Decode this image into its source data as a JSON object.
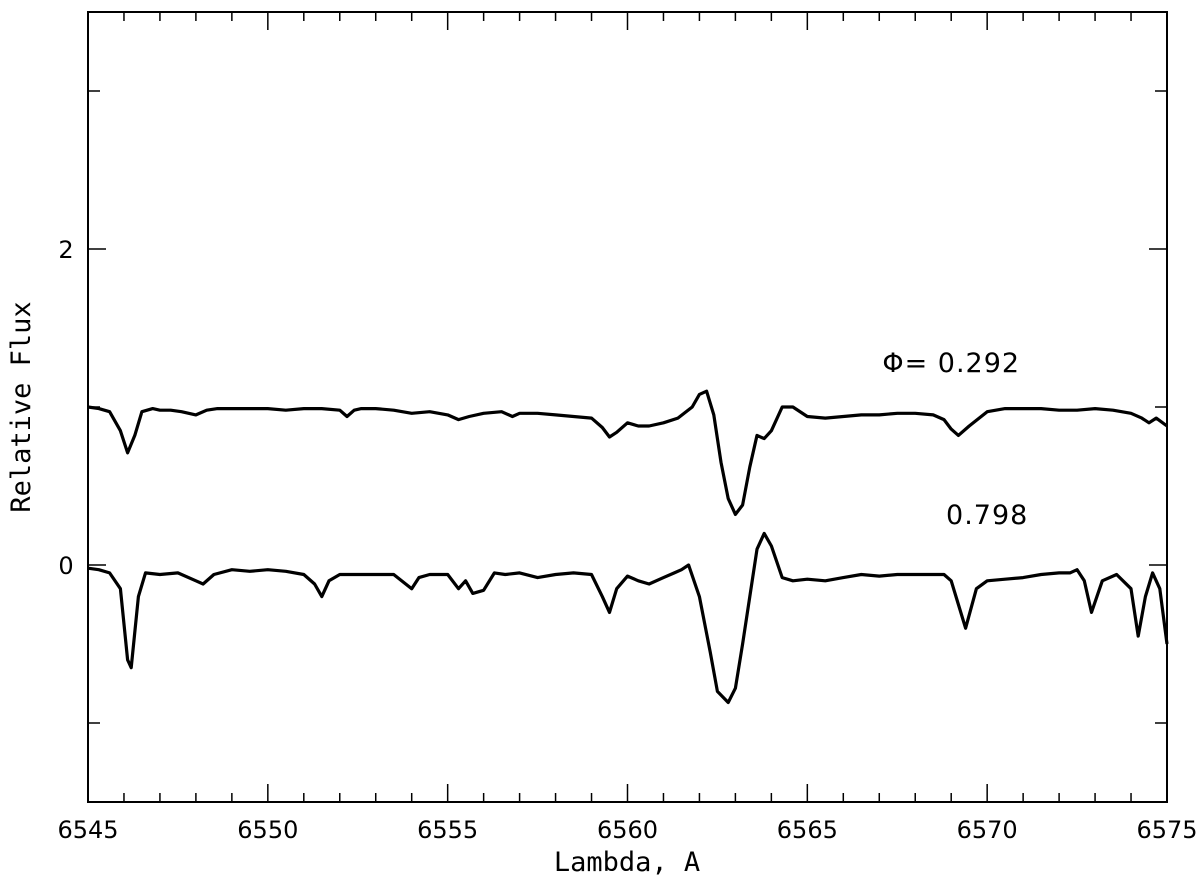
{
  "chart_data": {
    "type": "line",
    "title": "",
    "xlabel": "Lambda, A",
    "ylabel": "Relative Flux",
    "xlim": [
      6545,
      6575
    ],
    "ylim": [
      -1.5,
      3.5
    ],
    "xticks_major": [
      6545,
      6550,
      6555,
      6560,
      6565,
      6570,
      6575
    ],
    "xticks_minor_step": 1,
    "yticks_major": [
      0,
      2
    ],
    "yticks_minor": [
      -1,
      1,
      3
    ],
    "grid": false,
    "annotations": [
      {
        "text": "Φ= 0.292",
        "x": 6569.0,
        "y": 1.22
      },
      {
        "text": "0.798",
        "x": 6570.0,
        "y": 0.26
      }
    ],
    "series": [
      {
        "label": "0.292",
        "x": [
          6545.0,
          6545.3,
          6545.6,
          6545.9,
          6546.1,
          6546.3,
          6546.5,
          6546.8,
          6547.0,
          6547.3,
          6547.6,
          6548.0,
          6548.3,
          6548.6,
          6549.0,
          6549.5,
          6550.0,
          6550.5,
          6551.0,
          6551.5,
          6552.0,
          6552.2,
          6552.4,
          6552.6,
          6553.0,
          6553.5,
          6554.0,
          6554.5,
          6555.0,
          6555.3,
          6555.6,
          6556.0,
          6556.5,
          6556.8,
          6557.0,
          6557.5,
          6558.0,
          6558.5,
          6559.0,
          6559.3,
          6559.5,
          6559.7,
          6560.0,
          6560.3,
          6560.6,
          6561.0,
          6561.4,
          6561.8,
          6562.0,
          6562.2,
          6562.4,
          6562.6,
          6562.8,
          6563.0,
          6563.2,
          6563.4,
          6563.6,
          6563.8,
          6564.0,
          6564.3,
          6564.6,
          6565.0,
          6565.5,
          6566.0,
          6566.5,
          6567.0,
          6567.5,
          6568.0,
          6568.5,
          6568.8,
          6569.0,
          6569.2,
          6569.5,
          6570.0,
          6570.5,
          6571.0,
          6571.5,
          6572.0,
          6572.5,
          6573.0,
          6573.5,
          6574.0,
          6574.3,
          6574.5,
          6574.7,
          6575.0
        ],
        "y": [
          1.0,
          0.99,
          0.97,
          0.85,
          0.71,
          0.82,
          0.97,
          0.99,
          0.98,
          0.98,
          0.97,
          0.95,
          0.98,
          0.99,
          0.99,
          0.99,
          0.99,
          0.98,
          0.99,
          0.99,
          0.98,
          0.94,
          0.98,
          0.99,
          0.99,
          0.98,
          0.96,
          0.97,
          0.95,
          0.92,
          0.94,
          0.96,
          0.97,
          0.94,
          0.96,
          0.96,
          0.95,
          0.94,
          0.93,
          0.87,
          0.81,
          0.84,
          0.9,
          0.88,
          0.88,
          0.9,
          0.93,
          1.0,
          1.08,
          1.1,
          0.95,
          0.65,
          0.42,
          0.32,
          0.38,
          0.62,
          0.82,
          0.8,
          0.85,
          1.0,
          1.0,
          0.94,
          0.93,
          0.94,
          0.95,
          0.95,
          0.96,
          0.96,
          0.95,
          0.92,
          0.86,
          0.82,
          0.88,
          0.97,
          0.99,
          0.99,
          0.99,
          0.98,
          0.98,
          0.99,
          0.98,
          0.96,
          0.93,
          0.9,
          0.93,
          0.88
        ]
      },
      {
        "label": "0.798",
        "x": [
          6545.0,
          6545.3,
          6545.6,
          6545.9,
          6546.1,
          6546.2,
          6546.4,
          6546.6,
          6547.0,
          6547.5,
          6548.0,
          6548.2,
          6548.5,
          6549.0,
          6549.5,
          6550.0,
          6550.5,
          6551.0,
          6551.3,
          6551.5,
          6551.7,
          6552.0,
          6552.5,
          6553.0,
          6553.5,
          6554.0,
          6554.2,
          6554.5,
          6555.0,
          6555.3,
          6555.5,
          6555.7,
          6556.0,
          6556.3,
          6556.6,
          6557.0,
          6557.5,
          6558.0,
          6558.5,
          6559.0,
          6559.3,
          6559.5,
          6559.7,
          6560.0,
          6560.3,
          6560.6,
          6561.0,
          6561.3,
          6561.5,
          6561.7,
          6562.0,
          6562.3,
          6562.5,
          6562.8,
          6563.0,
          6563.2,
          6563.4,
          6563.6,
          6563.8,
          6564.0,
          6564.3,
          6564.6,
          6565.0,
          6565.5,
          6566.0,
          6566.5,
          6567.0,
          6567.5,
          6568.0,
          6568.5,
          6568.8,
          6569.0,
          6569.2,
          6569.4,
          6569.7,
          6570.0,
          6570.5,
          6571.0,
          6571.5,
          6572.0,
          6572.3,
          6572.5,
          6572.7,
          6572.9,
          6573.2,
          6573.6,
          6574.0,
          6574.2,
          6574.4,
          6574.6,
          6574.8,
          6575.0
        ],
        "y": [
          -0.02,
          -0.03,
          -0.05,
          -0.15,
          -0.6,
          -0.65,
          -0.2,
          -0.05,
          -0.06,
          -0.05,
          -0.1,
          -0.12,
          -0.06,
          -0.03,
          -0.04,
          -0.03,
          -0.04,
          -0.06,
          -0.12,
          -0.2,
          -0.1,
          -0.06,
          -0.06,
          -0.06,
          -0.06,
          -0.15,
          -0.08,
          -0.06,
          -0.06,
          -0.15,
          -0.1,
          -0.18,
          -0.16,
          -0.05,
          -0.06,
          -0.05,
          -0.08,
          -0.06,
          -0.05,
          -0.06,
          -0.2,
          -0.3,
          -0.15,
          -0.07,
          -0.1,
          -0.12,
          -0.08,
          -0.05,
          -0.03,
          0.0,
          -0.2,
          -0.55,
          -0.8,
          -0.87,
          -0.78,
          -0.5,
          -0.2,
          0.1,
          0.2,
          0.12,
          -0.08,
          -0.1,
          -0.09,
          -0.1,
          -0.08,
          -0.06,
          -0.07,
          -0.06,
          -0.06,
          -0.06,
          -0.06,
          -0.1,
          -0.25,
          -0.4,
          -0.15,
          -0.1,
          -0.09,
          -0.08,
          -0.06,
          -0.05,
          -0.05,
          -0.03,
          -0.1,
          -0.3,
          -0.1,
          -0.06,
          -0.15,
          -0.45,
          -0.2,
          -0.05,
          -0.15,
          -0.5
        ]
      }
    ]
  }
}
